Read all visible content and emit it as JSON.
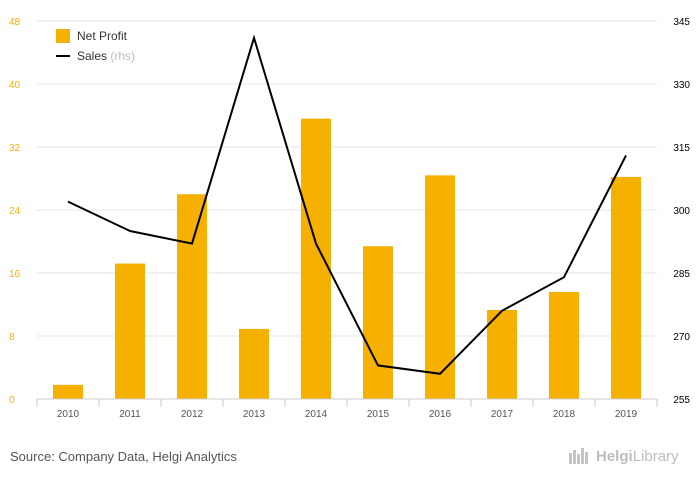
{
  "chart_data": {
    "type": "bar+line",
    "categories": [
      "2010",
      "2011",
      "2012",
      "2013",
      "2014",
      "2015",
      "2016",
      "2017",
      "2018",
      "2019"
    ],
    "series": [
      {
        "name": "Net Profit",
        "type": "bar",
        "axis": "left",
        "color": "#f5b000",
        "values": [
          1.8,
          17.2,
          26.0,
          8.9,
          35.6,
          19.4,
          28.4,
          11.3,
          13.6,
          28.2
        ]
      },
      {
        "name": "Sales",
        "legend_suffix": "(rhs)",
        "type": "line",
        "axis": "right",
        "color": "#000000",
        "values": [
          302,
          295,
          292,
          341,
          292,
          263,
          261,
          276,
          284,
          313
        ]
      }
    ],
    "y_left": {
      "min": 0,
      "max": 48,
      "ticks": [
        0,
        8,
        16,
        24,
        32,
        40,
        48
      ],
      "tick_color": "#f5b000"
    },
    "y_right": {
      "min": 255,
      "max": 345,
      "ticks": [
        255,
        270,
        285,
        300,
        315,
        330,
        345
      ],
      "tick_color": "#000000"
    },
    "grid": true,
    "legend_position": "top-left"
  },
  "footer": {
    "source": "Source: Company Data, Helgi Analytics",
    "logo_part1": "Helgi",
    "logo_part2": "Library"
  }
}
